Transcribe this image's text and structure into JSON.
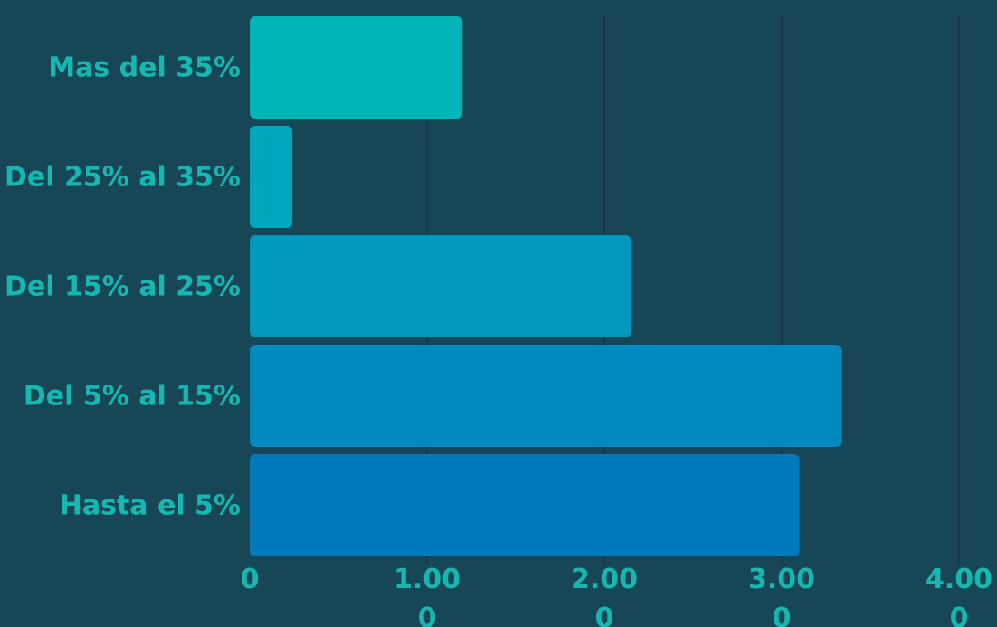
{
  "chart_data": {
    "type": "bar",
    "orientation": "horizontal",
    "categories": [
      "Mas del 35%",
      "Del 25% al 35%",
      "Del 15% al 25%",
      "Del 5% al 15%",
      "Hasta el 5%"
    ],
    "values": [
      1200,
      240,
      2150,
      3340,
      3100
    ],
    "xlim": [
      0,
      4000
    ],
    "x_ticks": [
      0,
      1000,
      2000,
      3000,
      4000
    ],
    "x_tick_labels": [
      "0",
      "1.000",
      "2.000",
      "3.000",
      "4.000"
    ],
    "grid": true,
    "legend": "none",
    "colors": [
      "#00b5b7",
      "#00a6bb",
      "#0099bd",
      "#0089bf",
      "#007abb"
    ],
    "background": "#174656",
    "grid_color": "#123a48",
    "label_color": "#14b8b0"
  }
}
